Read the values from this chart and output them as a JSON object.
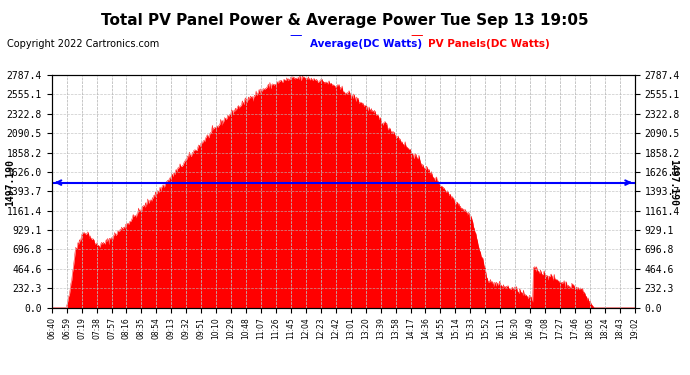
{
  "title": "Total PV Panel Power & Average Power Tue Sep 13 19:05",
  "copyright": "Copyright 2022 Cartronics.com",
  "legend_average": "Average(DC Watts)",
  "legend_pv": "PV Panels(DC Watts)",
  "average_value": 1497.19,
  "ymax": 2787.4,
  "yticks": [
    0.0,
    232.3,
    464.6,
    696.8,
    929.1,
    1161.4,
    1393.7,
    1626.0,
    1858.2,
    2090.5,
    2322.8,
    2555.1,
    2787.4
  ],
  "background_color": "#ffffff",
  "fill_color": "#ff0000",
  "average_line_color": "#0000ff",
  "grid_color": "#aaaaaa",
  "title_color": "#000000",
  "copyright_color": "#000000",
  "legend_avg_color": "#0000ff",
  "legend_pv_color": "#ff0000",
  "x_tick_labels": [
    "06:40",
    "06:59",
    "07:19",
    "07:38",
    "07:57",
    "08:16",
    "08:35",
    "08:54",
    "09:13",
    "09:32",
    "09:51",
    "10:10",
    "10:29",
    "10:48",
    "11:07",
    "11:26",
    "11:45",
    "12:04",
    "12:23",
    "12:42",
    "13:01",
    "13:20",
    "13:39",
    "13:58",
    "14:17",
    "14:36",
    "14:55",
    "15:14",
    "15:33",
    "15:52",
    "16:11",
    "16:30",
    "16:49",
    "17:08",
    "17:27",
    "17:46",
    "18:05",
    "18:24",
    "18:43",
    "19:02"
  ]
}
